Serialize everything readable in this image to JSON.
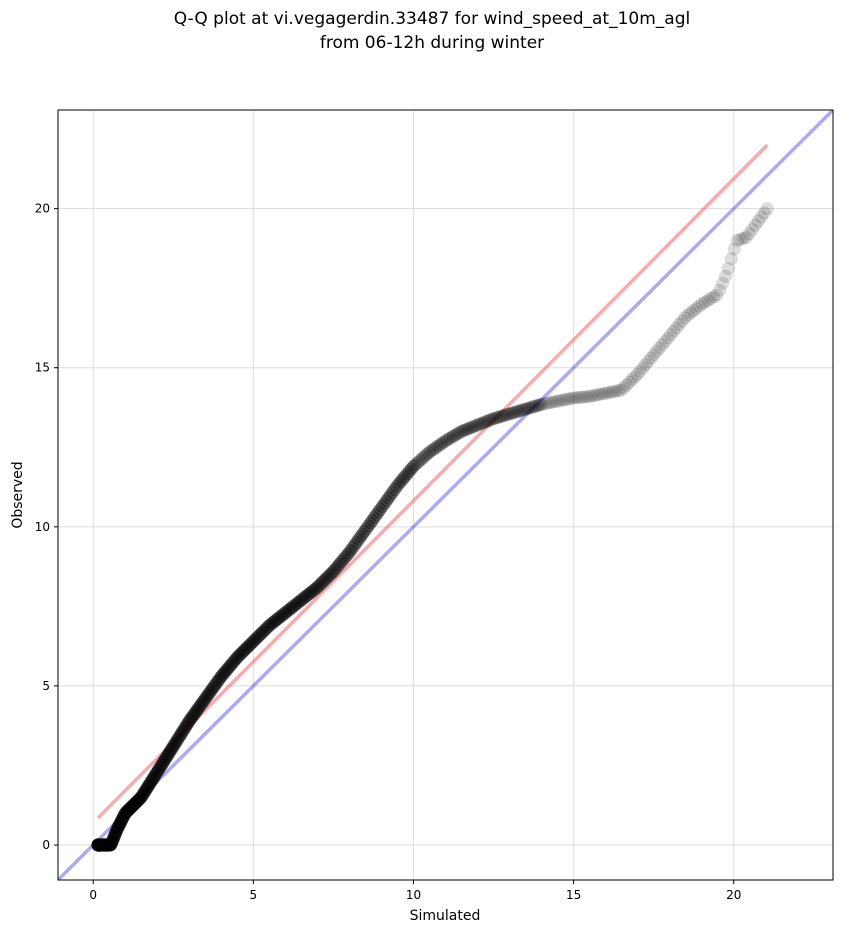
{
  "chart_data": {
    "type": "scatter",
    "title_lines": [
      "Q-Q plot at vi.vegagerdin.33487 for wind_speed_at_10m_agl",
      "from 06-12h during winter"
    ],
    "xlabel": "Simulated",
    "ylabel": "Observed",
    "xlim": [
      -1.1,
      23.1
    ],
    "ylim": [
      -1.1,
      23.1
    ],
    "xticks": [
      0,
      5,
      10,
      15,
      20
    ],
    "yticks": [
      0,
      5,
      10,
      15,
      20
    ],
    "grid": true,
    "colors": {
      "identity_line": "#0000dd",
      "fit_line": "#ee2222",
      "points": "#000000",
      "grid": "#dddddd",
      "frame": "#000000"
    },
    "identity_line": {
      "x": [
        -1.1,
        23.1
      ],
      "y": [
        -1.1,
        23.1
      ]
    },
    "fit_line": {
      "x": [
        0.15,
        21.05
      ],
      "y": [
        0.85,
        22.0
      ]
    },
    "quantile_anchors": {
      "x": [
        0.15,
        0.4,
        0.55,
        0.75,
        1.0,
        1.5,
        2.0,
        2.5,
        3.0,
        3.5,
        4.0,
        4.5,
        5.0,
        5.5,
        6.0,
        6.5,
        7.0,
        7.5,
        8.0,
        8.5,
        9.0,
        9.5,
        10.0,
        10.5,
        11.0,
        11.5,
        12.0,
        12.5,
        13.0,
        13.5,
        14.0,
        14.5,
        15.0,
        15.5,
        16.0,
        16.5,
        17.0,
        17.5,
        18.0,
        18.5,
        19.0,
        19.5,
        19.8,
        20.1,
        20.4,
        21.05
      ],
      "y": [
        0.0,
        0.0,
        0.0,
        0.5,
        1.0,
        1.5,
        2.3,
        3.1,
        3.9,
        4.6,
        5.3,
        5.9,
        6.4,
        6.9,
        7.3,
        7.7,
        8.1,
        8.6,
        9.2,
        9.9,
        10.6,
        11.3,
        11.9,
        12.35,
        12.7,
        13.0,
        13.2,
        13.4,
        13.55,
        13.7,
        13.85,
        13.95,
        14.05,
        14.1,
        14.2,
        14.3,
        14.8,
        15.4,
        16.0,
        16.6,
        17.0,
        17.3,
        18.0,
        19.0,
        19.1,
        20.0
      ]
    },
    "point_count": 420
  }
}
